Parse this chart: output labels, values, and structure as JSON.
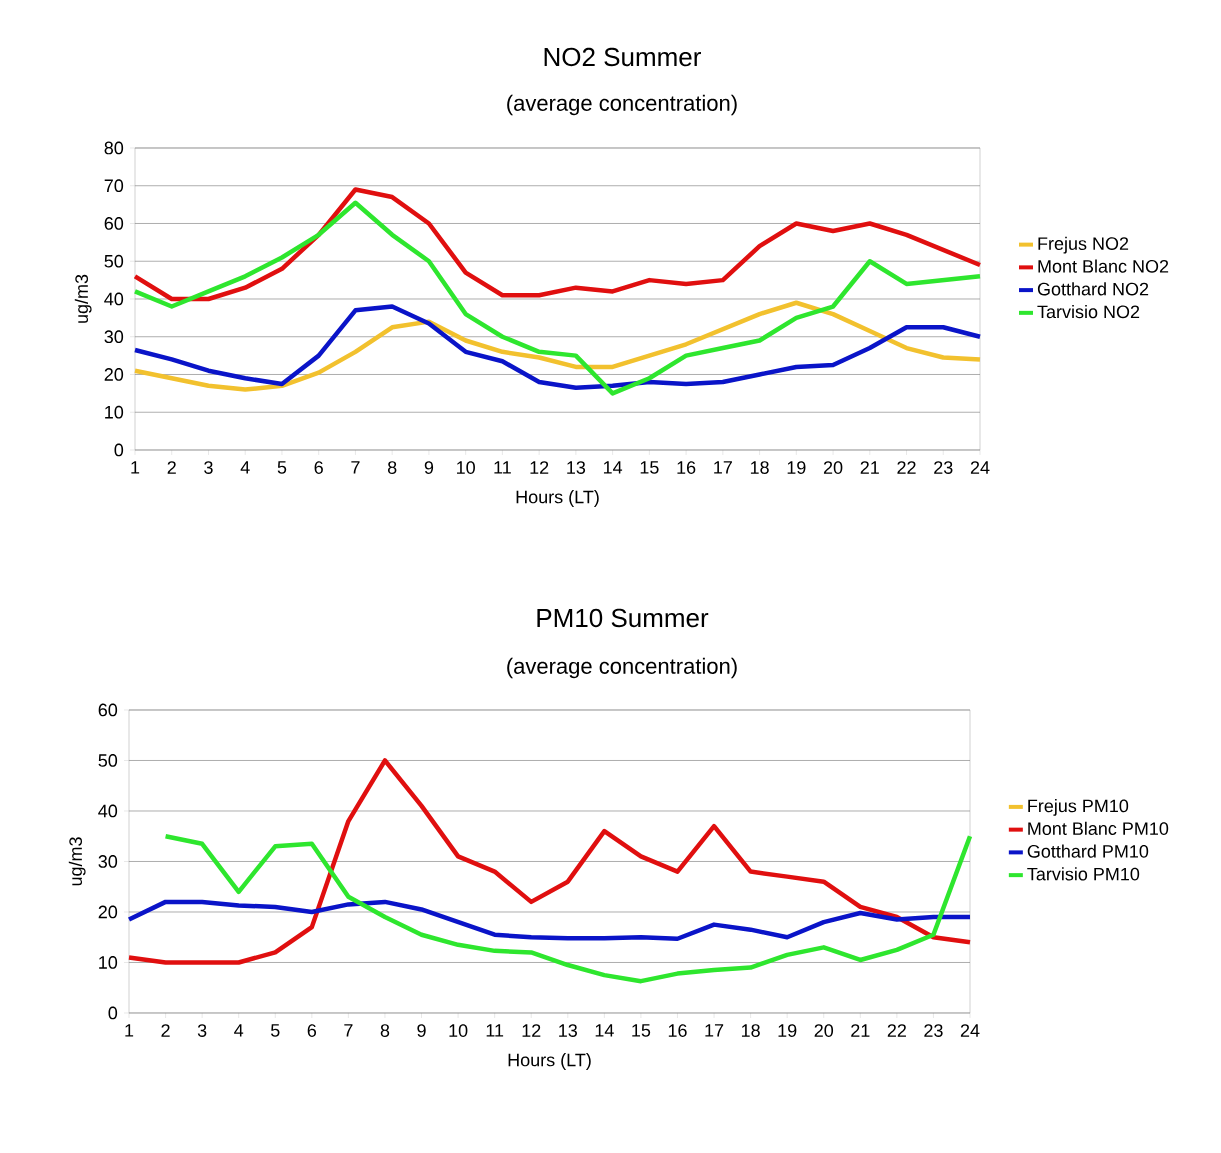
{
  "chart_data": [
    {
      "type": "line",
      "title": "NO2 Summer",
      "subtitle": "(average concentration)",
      "xlabel": "Hours (LT)",
      "ylabel": "ug/m3",
      "categories": [
        "1",
        "2",
        "3",
        "4",
        "5",
        "6",
        "7",
        "8",
        "9",
        "10",
        "11",
        "12",
        "13",
        "14",
        "15",
        "16",
        "17",
        "18",
        "19",
        "20",
        "21",
        "22",
        "23",
        "24"
      ],
      "series": [
        {
          "name": "Frejus NO2",
          "color": "#f2c12e",
          "values": [
            21,
            19,
            17,
            16,
            17,
            20.5,
            26,
            32.5,
            34,
            29,
            26,
            24.5,
            22,
            22,
            25,
            28,
            32,
            36,
            39,
            36,
            31.5,
            27,
            24.5,
            24
          ]
        },
        {
          "name": "Mont Blanc NO2",
          "color": "#e00f0f",
          "values": [
            46,
            40,
            40,
            43,
            48,
            57,
            69,
            67,
            60,
            47,
            41,
            41,
            43,
            42,
            45,
            44,
            45,
            54,
            60,
            58,
            60,
            57,
            53,
            49
          ]
        },
        {
          "name": "Gotthard NO2",
          "color": "#0a14c8",
          "values": [
            26.5,
            24,
            21,
            19,
            17.5,
            25,
            37,
            38,
            33.5,
            26,
            23.5,
            18,
            16.5,
            17,
            18,
            17.5,
            18,
            20,
            22,
            22.5,
            27,
            32.5,
            32.5,
            30
          ]
        },
        {
          "name": "Tarvisio NO2",
          "color": "#2ee62e",
          "values": [
            42,
            38,
            42,
            46,
            51,
            57,
            65.5,
            57,
            50,
            36,
            30,
            26,
            25,
            15,
            19,
            25,
            27,
            29,
            35,
            38,
            50,
            44,
            45,
            46
          ]
        }
      ],
      "ylim": [
        0,
        80
      ],
      "yticks": [
        0,
        10,
        20,
        30,
        40,
        50,
        60,
        70,
        80
      ],
      "grid": "y",
      "legend": "right",
      "marker": "none",
      "line_style": "solid"
    },
    {
      "type": "line",
      "title": "PM10 Summer",
      "subtitle": "(average concentration)",
      "xlabel": "Hours (LT)",
      "ylabel": "ug/m3",
      "categories": [
        "1",
        "2",
        "3",
        "4",
        "5",
        "6",
        "7",
        "8",
        "9",
        "10",
        "11",
        "12",
        "13",
        "14",
        "15",
        "16",
        "17",
        "18",
        "19",
        "20",
        "21",
        "22",
        "23",
        "24"
      ],
      "series": [
        {
          "name": "Frejus PM10",
          "color": "#f2c12e",
          "values": [
            null,
            null,
            null,
            null,
            null,
            null,
            null,
            null,
            null,
            null,
            null,
            null,
            null,
            null,
            null,
            null,
            null,
            null,
            null,
            null,
            null,
            null,
            null,
            null
          ]
        },
        {
          "name": "Mont Blanc PM10",
          "color": "#e00f0f",
          "values": [
            11,
            10,
            10,
            10,
            12,
            17,
            38,
            50,
            41,
            31,
            28,
            22,
            26,
            36,
            31,
            28,
            37,
            28,
            27,
            26,
            21,
            19,
            15,
            14
          ]
        },
        {
          "name": "Gotthard PM10",
          "color": "#0a14c8",
          "values": [
            18.5,
            22,
            22,
            21.3,
            21,
            20,
            21.5,
            22,
            20.5,
            18,
            15.5,
            15,
            14.8,
            14.8,
            15,
            14.7,
            17.5,
            16.5,
            15,
            18,
            19.8,
            18.5,
            19,
            19
          ]
        },
        {
          "name": "Tarvisio PM10",
          "color": "#2ee62e",
          "values": [
            null,
            35,
            33.5,
            24,
            33,
            33.5,
            23,
            19,
            15.5,
            13.5,
            12.3,
            12,
            9.5,
            7.5,
            6.3,
            7.8,
            8.5,
            9,
            11.5,
            13,
            10.5,
            12.5,
            15.5,
            35
          ]
        }
      ],
      "ylim": [
        0,
        60
      ],
      "yticks": [
        0,
        10,
        20,
        30,
        40,
        50,
        60
      ],
      "grid": "y",
      "legend": "right",
      "marker": "none",
      "line_style": "solid"
    }
  ]
}
